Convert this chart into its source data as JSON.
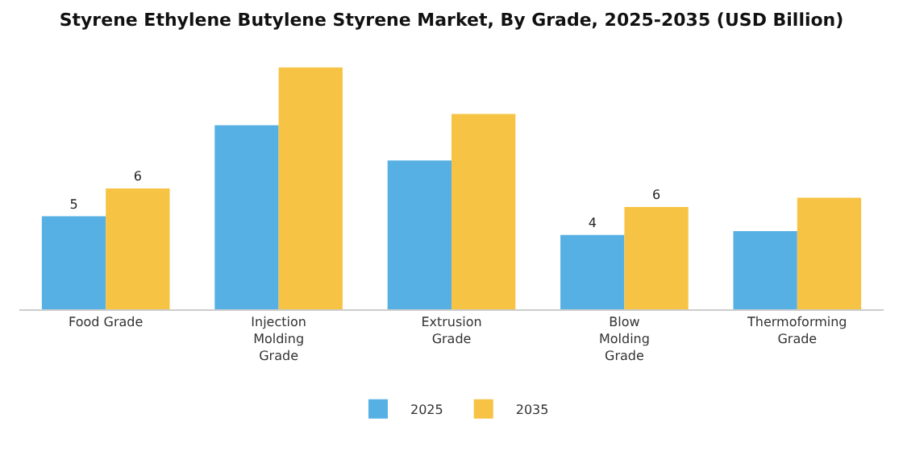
{
  "chart_data": {
    "type": "bar",
    "title": "Styrene Ethylene Butylene Styrene Market, By Grade, 2025-2035 (USD Billion)",
    "categories": [
      "Food Grade",
      "Injection Molding Grade",
      "Extrusion Grade",
      "Blow Molding Grade",
      "Thermoforming Grade"
    ],
    "series": [
      {
        "name": "2025",
        "color": "#56b0e4",
        "values": [
          5.0,
          9.9,
          8.0,
          4.0,
          4.2
        ],
        "value_labels": [
          "5",
          null,
          null,
          "4",
          null
        ]
      },
      {
        "name": "2035",
        "color": "#f7c344",
        "values": [
          6.5,
          13.0,
          10.5,
          5.5,
          6.0
        ],
        "value_labels": [
          "6",
          null,
          null,
          "6",
          null
        ]
      }
    ],
    "grid": false,
    "legend": "bottom"
  }
}
